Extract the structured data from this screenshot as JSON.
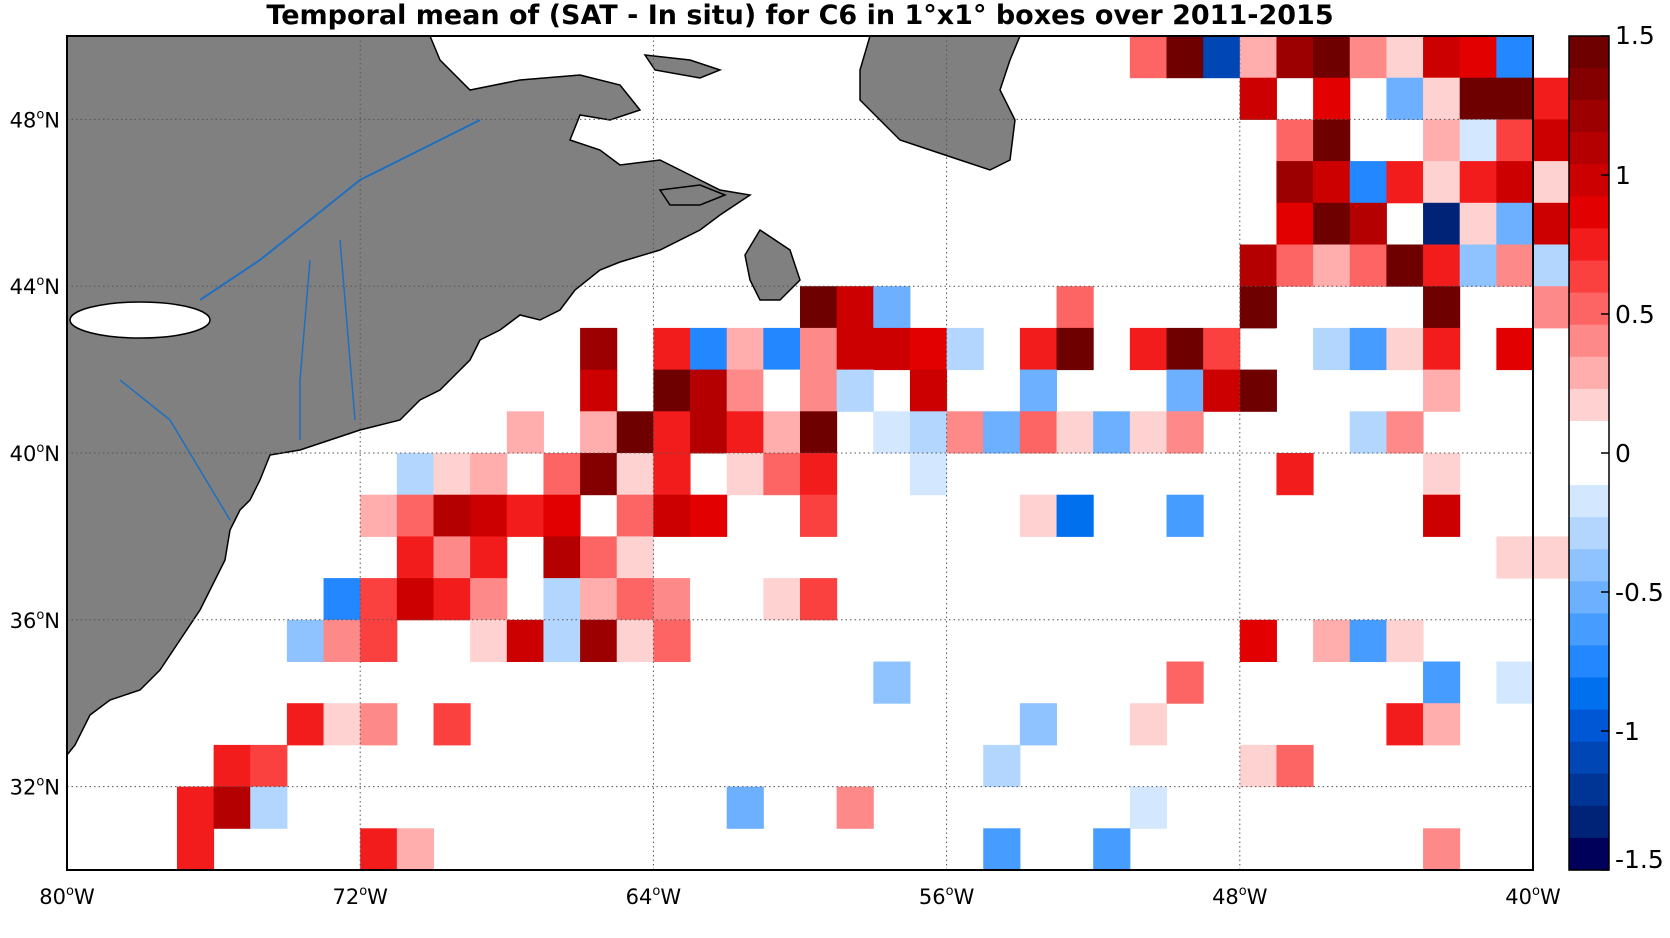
{
  "title": "Temporal mean of (SAT - In situ) for C6 in 1°x1° boxes over 2011-2015",
  "map": {
    "lon_range": [
      -80,
      -40
    ],
    "lat_range": [
      30,
      50
    ],
    "lon_ticks": [
      {
        "value": -80,
        "deg": "80",
        "hem": "W"
      },
      {
        "value": -72,
        "deg": "72",
        "hem": "W"
      },
      {
        "value": -64,
        "deg": "64",
        "hem": "W"
      },
      {
        "value": -56,
        "deg": "56",
        "hem": "W"
      },
      {
        "value": -48,
        "deg": "48",
        "hem": "W"
      },
      {
        "value": -40,
        "deg": "40",
        "hem": "W"
      }
    ],
    "lat_ticks": [
      {
        "value": 32,
        "deg": "32",
        "hem": "N"
      },
      {
        "value": 36,
        "deg": "36",
        "hem": "N"
      },
      {
        "value": 40,
        "deg": "40",
        "hem": "N"
      },
      {
        "value": 44,
        "deg": "44",
        "hem": "N"
      },
      {
        "value": 48,
        "deg": "48",
        "hem": "N"
      }
    ],
    "grid": "dotted",
    "land_color": "#808080",
    "river_color": "#1f6fc0"
  },
  "colorbar": {
    "min": -1.5,
    "max": 1.5,
    "tick_labels": [
      "1.5",
      "1",
      "0.5",
      "0",
      "-0.5",
      "-1",
      "-1.5"
    ],
    "tick_values": [
      1.5,
      1,
      0.5,
      0,
      -0.5,
      -1,
      -1.5
    ],
    "colors_top_to_bottom": [
      "#6e0000",
      "#840000",
      "#9c0000",
      "#b40000",
      "#cc0000",
      "#e30000",
      "#f31c1c",
      "#fb4040",
      "#fd6464",
      "#fe8989",
      "#ffadad",
      "#ffd2d2",
      "#ffffff",
      "#ffffff",
      "#d3e8ff",
      "#b3d6ff",
      "#8fc3ff",
      "#6cb0ff",
      "#479cff",
      "#2387ff",
      "#0070ef",
      "#0057d5",
      "#0046b4",
      "#003495",
      "#002377",
      "#00005b"
    ]
  },
  "chart_data": {
    "type": "heatmap",
    "x_unit": "degrees longitude (negative = W)",
    "y_unit": "degrees latitude",
    "cell_size_deg": 1,
    "cells": [
      {
        "lon": -51,
        "lat": 49,
        "v": 0.5
      },
      {
        "lon": -50,
        "lat": 49,
        "v": 1.5
      },
      {
        "lon": -49,
        "lat": 49,
        "v": -1.1
      },
      {
        "lon": -48,
        "lat": 49,
        "v": 0.3
      },
      {
        "lon": -47,
        "lat": 49,
        "v": 1.2
      },
      {
        "lon": -46,
        "lat": 49,
        "v": 1.4
      },
      {
        "lon": -45,
        "lat": 49,
        "v": 0.4
      },
      {
        "lon": -44,
        "lat": 49,
        "v": 0.2
      },
      {
        "lon": -43,
        "lat": 49,
        "v": 1.0
      },
      {
        "lon": -42,
        "lat": 49,
        "v": 0.9
      },
      {
        "lon": -41,
        "lat": 49,
        "v": -0.75
      },
      {
        "lon": -48,
        "lat": 48,
        "v": 1.0
      },
      {
        "lon": -46,
        "lat": 48,
        "v": 0.9
      },
      {
        "lon": -44,
        "lat": 48,
        "v": -0.5
      },
      {
        "lon": -43,
        "lat": 48,
        "v": 0.2
      },
      {
        "lon": -42,
        "lat": 48,
        "v": 1.4
      },
      {
        "lon": -41,
        "lat": 48,
        "v": 1.4
      },
      {
        "lon": -40,
        "lat": 48,
        "v": 0.7
      },
      {
        "lon": -47,
        "lat": 47,
        "v": 0.55
      },
      {
        "lon": -46,
        "lat": 47,
        "v": 1.5
      },
      {
        "lon": -43,
        "lat": 47,
        "v": 0.3
      },
      {
        "lon": -42,
        "lat": 47,
        "v": -0.15
      },
      {
        "lon": -41,
        "lat": 47,
        "v": 0.6
      },
      {
        "lon": -40,
        "lat": 47,
        "v": 1.0
      },
      {
        "lon": -47,
        "lat": 46,
        "v": 1.2
      },
      {
        "lon": -46,
        "lat": 46,
        "v": 1.0
      },
      {
        "lon": -45,
        "lat": 46,
        "v": -0.75
      },
      {
        "lon": -44,
        "lat": 46,
        "v": 0.8
      },
      {
        "lon": -43,
        "lat": 46,
        "v": 0.15
      },
      {
        "lon": -42,
        "lat": 46,
        "v": 0.8
      },
      {
        "lon": -41,
        "lat": 46,
        "v": 1.0
      },
      {
        "lon": -40,
        "lat": 46,
        "v": 0.15
      },
      {
        "lon": -47,
        "lat": 45,
        "v": 0.9
      },
      {
        "lon": -46,
        "lat": 45,
        "v": 1.4
      },
      {
        "lon": -45,
        "lat": 45,
        "v": 1.1
      },
      {
        "lon": -43,
        "lat": 45,
        "v": -1.3
      },
      {
        "lon": -42,
        "lat": 45,
        "v": 0.2
      },
      {
        "lon": -41,
        "lat": 45,
        "v": -0.5
      },
      {
        "lon": -40,
        "lat": 45,
        "v": 1.0
      },
      {
        "lon": -48,
        "lat": 44,
        "v": 1.1
      },
      {
        "lon": -47,
        "lat": 44,
        "v": 0.5
      },
      {
        "lon": -46,
        "lat": 44,
        "v": 0.3
      },
      {
        "lon": -45,
        "lat": 44,
        "v": 0.5
      },
      {
        "lon": -44,
        "lat": 44,
        "v": 1.5
      },
      {
        "lon": -43,
        "lat": 44,
        "v": 0.8
      },
      {
        "lon": -42,
        "lat": 44,
        "v": -0.4
      },
      {
        "lon": -41,
        "lat": 44,
        "v": 0.4
      },
      {
        "lon": -40,
        "lat": 44,
        "v": -0.3
      },
      {
        "lon": -60,
        "lat": 43,
        "v": 1.5
      },
      {
        "lon": -59,
        "lat": 43,
        "v": 0.95
      },
      {
        "lon": -58,
        "lat": 43,
        "v": -0.5
      },
      {
        "lon": -53,
        "lat": 43,
        "v": 0.55
      },
      {
        "lon": -48,
        "lat": 43,
        "v": 1.5
      },
      {
        "lon": -43,
        "lat": 43,
        "v": 1.5
      },
      {
        "lon": -40,
        "lat": 43,
        "v": 0.45
      },
      {
        "lon": -66,
        "lat": 42,
        "v": 1.2
      },
      {
        "lon": -64,
        "lat": 42,
        "v": 0.8
      },
      {
        "lon": -63,
        "lat": 42,
        "v": -0.75
      },
      {
        "lon": -62,
        "lat": 42,
        "v": 0.3
      },
      {
        "lon": -61,
        "lat": 42,
        "v": -0.75
      },
      {
        "lon": -60,
        "lat": 42,
        "v": 0.45
      },
      {
        "lon": -59,
        "lat": 42,
        "v": 1.0
      },
      {
        "lon": -58,
        "lat": 42,
        "v": 1.0
      },
      {
        "lon": -57,
        "lat": 42,
        "v": 0.9
      },
      {
        "lon": -56,
        "lat": 42,
        "v": -0.25
      },
      {
        "lon": -54,
        "lat": 42,
        "v": 0.8
      },
      {
        "lon": -53,
        "lat": 42,
        "v": 1.5
      },
      {
        "lon": -51,
        "lat": 42,
        "v": 0.8
      },
      {
        "lon": -50,
        "lat": 42,
        "v": 1.5
      },
      {
        "lon": -49,
        "lat": 42,
        "v": 0.6
      },
      {
        "lon": -47,
        "lat": 42,
        "v": -0.1
      },
      {
        "lon": -46,
        "lat": 42,
        "v": -0.25
      },
      {
        "lon": -45,
        "lat": 42,
        "v": -0.6
      },
      {
        "lon": -44,
        "lat": 42,
        "v": 0.15
      },
      {
        "lon": -43,
        "lat": 42,
        "v": 0.8
      },
      {
        "lon": -41,
        "lat": 42,
        "v": 0.9
      },
      {
        "lon": -66,
        "lat": 41,
        "v": 1.0
      },
      {
        "lon": -64,
        "lat": 41,
        "v": 1.5
      },
      {
        "lon": -63,
        "lat": 41,
        "v": 1.1
      },
      {
        "lon": -62,
        "lat": 41,
        "v": 0.45
      },
      {
        "lon": -61,
        "lat": 41,
        "v": -0.1
      },
      {
        "lon": -60,
        "lat": 41,
        "v": 0.45
      },
      {
        "lon": -59,
        "lat": 41,
        "v": -0.25
      },
      {
        "lon": -57,
        "lat": 41,
        "v": 0.95
      },
      {
        "lon": -54,
        "lat": 41,
        "v": -0.5
      },
      {
        "lon": -50,
        "lat": 41,
        "v": -0.5
      },
      {
        "lon": -49,
        "lat": 41,
        "v": 1.0
      },
      {
        "lon": -48,
        "lat": 41,
        "v": 1.5
      },
      {
        "lon": -43,
        "lat": 41,
        "v": 0.3
      },
      {
        "lon": -68,
        "lat": 40,
        "v": 0.25
      },
      {
        "lon": -66,
        "lat": 40,
        "v": 0.25
      },
      {
        "lon": -65,
        "lat": 40,
        "v": 1.5
      },
      {
        "lon": -64,
        "lat": 40,
        "v": 0.7
      },
      {
        "lon": -63,
        "lat": 40,
        "v": 1.1
      },
      {
        "lon": -62,
        "lat": 40,
        "v": 0.7
      },
      {
        "lon": -61,
        "lat": 40,
        "v": 0.3
      },
      {
        "lon": -60,
        "lat": 40,
        "v": 1.4
      },
      {
        "lon": -58,
        "lat": 40,
        "v": -0.15
      },
      {
        "lon": -57,
        "lat": 40,
        "v": -0.25
      },
      {
        "lon": -56,
        "lat": 40,
        "v": 0.45
      },
      {
        "lon": -55,
        "lat": 40,
        "v": -0.5
      },
      {
        "lon": -54,
        "lat": 40,
        "v": 0.55
      },
      {
        "lon": -53,
        "lat": 40,
        "v": 0.15
      },
      {
        "lon": -52,
        "lat": 40,
        "v": -0.5
      },
      {
        "lon": -51,
        "lat": 40,
        "v": 0.15
      },
      {
        "lon": -50,
        "lat": 40,
        "v": 0.4
      },
      {
        "lon": -45,
        "lat": 40,
        "v": -0.25
      },
      {
        "lon": -44,
        "lat": 40,
        "v": 0.45
      },
      {
        "lon": -71,
        "lat": 39,
        "v": -0.25
      },
      {
        "lon": -70,
        "lat": 39,
        "v": 0.15
      },
      {
        "lon": -69,
        "lat": 39,
        "v": 0.3
      },
      {
        "lon": -67,
        "lat": 39,
        "v": 0.55
      },
      {
        "lon": -66,
        "lat": 39,
        "v": 1.3
      },
      {
        "lon": -65,
        "lat": 39,
        "v": 0.15
      },
      {
        "lon": -64,
        "lat": 39,
        "v": 0.7
      },
      {
        "lon": -62,
        "lat": 39,
        "v": 0.15
      },
      {
        "lon": -61,
        "lat": 39,
        "v": 0.55
      },
      {
        "lon": -60,
        "lat": 39,
        "v": 0.8
      },
      {
        "lon": -57,
        "lat": 39,
        "v": -0.15
      },
      {
        "lon": -47,
        "lat": 39,
        "v": 0.7
      },
      {
        "lon": -43,
        "lat": 39,
        "v": 0.15
      },
      {
        "lon": -72,
        "lat": 38,
        "v": 0.25
      },
      {
        "lon": -71,
        "lat": 38,
        "v": 0.55
      },
      {
        "lon": -70,
        "lat": 38,
        "v": 1.1
      },
      {
        "lon": -69,
        "lat": 38,
        "v": 1.0
      },
      {
        "lon": -68,
        "lat": 38,
        "v": 0.75
      },
      {
        "lon": -67,
        "lat": 38,
        "v": 0.85
      },
      {
        "lon": -65,
        "lat": 38,
        "v": 0.55
      },
      {
        "lon": -64,
        "lat": 38,
        "v": 0.95
      },
      {
        "lon": -63,
        "lat": 38,
        "v": 0.85
      },
      {
        "lon": -60,
        "lat": 38,
        "v": 0.65
      },
      {
        "lon": -54,
        "lat": 38,
        "v": 0.15
      },
      {
        "lon": -53,
        "lat": 38,
        "v": -0.85
      },
      {
        "lon": -50,
        "lat": 38,
        "v": -0.65
      },
      {
        "lon": -43,
        "lat": 38,
        "v": 0.95
      },
      {
        "lon": -41,
        "lat": 38,
        "v": -0.1
      },
      {
        "lon": -71,
        "lat": 37,
        "v": 0.7
      },
      {
        "lon": -70,
        "lat": 37,
        "v": 0.45
      },
      {
        "lon": -69,
        "lat": 37,
        "v": 0.75
      },
      {
        "lon": -67,
        "lat": 37,
        "v": 1.1
      },
      {
        "lon": -66,
        "lat": 37,
        "v": 0.55
      },
      {
        "lon": -65,
        "lat": 37,
        "v": 0.15
      },
      {
        "lon": -57,
        "lat": 37,
        "v": -0.1
      },
      {
        "lon": -41,
        "lat": 37,
        "v": 0.15
      },
      {
        "lon": -40,
        "lat": 37,
        "v": 0.15
      },
      {
        "lon": -73,
        "lat": 36,
        "v": -0.75
      },
      {
        "lon": -72,
        "lat": 36,
        "v": 0.6
      },
      {
        "lon": -71,
        "lat": 36,
        "v": 1.0
      },
      {
        "lon": -70,
        "lat": 36,
        "v": 0.7
      },
      {
        "lon": -69,
        "lat": 36,
        "v": 0.45
      },
      {
        "lon": -67,
        "lat": 36,
        "v": -0.25
      },
      {
        "lon": -66,
        "lat": 36,
        "v": 0.3
      },
      {
        "lon": -65,
        "lat": 36,
        "v": 0.55
      },
      {
        "lon": -64,
        "lat": 36,
        "v": 0.45
      },
      {
        "lon": -63,
        "lat": 36,
        "v": -0.1
      },
      {
        "lon": -61,
        "lat": 36,
        "v": 0.15
      },
      {
        "lon": -60,
        "lat": 36,
        "v": 0.6
      },
      {
        "lon": -74,
        "lat": 35,
        "v": -0.35
      },
      {
        "lon": -73,
        "lat": 35,
        "v": 0.45
      },
      {
        "lon": -72,
        "lat": 35,
        "v": 0.6
      },
      {
        "lon": -69,
        "lat": 35,
        "v": 0.15
      },
      {
        "lon": -68,
        "lat": 35,
        "v": 0.95
      },
      {
        "lon": -67,
        "lat": 35,
        "v": -0.3
      },
      {
        "lon": -66,
        "lat": 35,
        "v": 1.2
      },
      {
        "lon": -65,
        "lat": 35,
        "v": 0.15
      },
      {
        "lon": -64,
        "lat": 35,
        "v": 0.55
      },
      {
        "lon": -48,
        "lat": 35,
        "v": 0.85
      },
      {
        "lon": -46,
        "lat": 35,
        "v": 0.3
      },
      {
        "lon": -45,
        "lat": 35,
        "v": -0.6
      },
      {
        "lon": -44,
        "lat": 35,
        "v": 0.15
      },
      {
        "lon": -58,
        "lat": 34,
        "v": -0.4
      },
      {
        "lon": -50,
        "lat": 34,
        "v": 0.5
      },
      {
        "lon": -43,
        "lat": 34,
        "v": -0.6
      },
      {
        "lon": -41,
        "lat": 34,
        "v": -0.15
      },
      {
        "lon": -74,
        "lat": 33,
        "v": 0.7
      },
      {
        "lon": -73,
        "lat": 33,
        "v": 0.15
      },
      {
        "lon": -72,
        "lat": 33,
        "v": 0.4
      },
      {
        "lon": -70,
        "lat": 33,
        "v": 0.6
      },
      {
        "lon": -54,
        "lat": 33,
        "v": -0.35
      },
      {
        "lon": -51,
        "lat": 33,
        "v": 0.15
      },
      {
        "lon": -44,
        "lat": 33,
        "v": 0.75
      },
      {
        "lon": -43,
        "lat": 33,
        "v": 0.3
      },
      {
        "lon": -76,
        "lat": 32,
        "v": 0.75
      },
      {
        "lon": -75,
        "lat": 32,
        "v": 0.6
      },
      {
        "lon": -55,
        "lat": 32,
        "v": -0.25
      },
      {
        "lon": -48,
        "lat": 32,
        "v": 0.15
      },
      {
        "lon": -47,
        "lat": 32,
        "v": 0.5
      },
      {
        "lon": -77,
        "lat": 31,
        "v": 0.8
      },
      {
        "lon": -76,
        "lat": 31,
        "v": 1.1
      },
      {
        "lon": -75,
        "lat": 31,
        "v": -0.25
      },
      {
        "lon": -62,
        "lat": 31,
        "v": -0.55
      },
      {
        "lon": -59,
        "lat": 31,
        "v": 0.45
      },
      {
        "lon": -51,
        "lat": 31,
        "v": -0.15
      },
      {
        "lon": -77,
        "lat": 30,
        "v": 0.8
      },
      {
        "lon": -72,
        "lat": 30,
        "v": 0.75
      },
      {
        "lon": -71,
        "lat": 30,
        "v": 0.3
      },
      {
        "lon": -55,
        "lat": 30,
        "v": -0.65
      },
      {
        "lon": -52,
        "lat": 30,
        "v": -0.65
      },
      {
        "lon": -43,
        "lat": 30,
        "v": 0.45
      }
    ]
  }
}
